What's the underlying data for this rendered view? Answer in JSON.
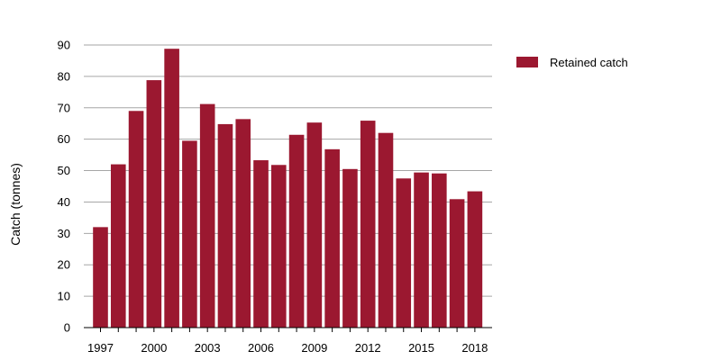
{
  "chart_data": {
    "type": "bar",
    "title": "",
    "xlabel": "",
    "ylabel": "Catch (tonnes)",
    "ylim": [
      0,
      90
    ],
    "y_ticks": [
      0,
      10,
      20,
      30,
      40,
      50,
      60,
      70,
      80,
      90
    ],
    "x_tick_labels": [
      "1997",
      "2000",
      "2003",
      "2006",
      "2009",
      "2012",
      "2015",
      "2018"
    ],
    "grid": "horizontal",
    "legend_position": "top-right",
    "categories": [
      "1997",
      "1998",
      "1999",
      "2000",
      "2001",
      "2002",
      "2003",
      "2004",
      "2005",
      "2006",
      "2007",
      "2008",
      "2009",
      "2010",
      "2011",
      "2012",
      "2013",
      "2014",
      "2015",
      "2016",
      "2017",
      "2018"
    ],
    "series": [
      {
        "name": "Retained catch",
        "color": "#9b1830",
        "values": [
          32,
          52,
          69,
          78.8,
          88.8,
          59.5,
          71.2,
          64.8,
          66.4,
          53.3,
          51.8,
          61.4,
          65.3,
          56.8,
          50.5,
          65.9,
          62,
          47.5,
          49.4,
          49.1,
          40.9,
          43.4
        ]
      }
    ]
  }
}
